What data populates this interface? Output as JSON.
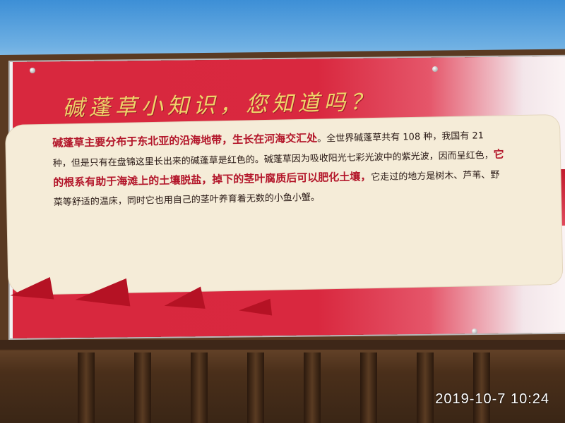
{
  "sign": {
    "title": "碱蓬草小知识，您知道吗？",
    "paragraph_1_lead": "碱蓬草主要分布于东北亚的沿海地带，生长在河海交汇处",
    "paragraph_1_rest": "。全世界碱蓬草共有 108 种，我国有 21 种，但是只有在盘锦这里长出来的碱蓬草是红色的。碱蓬草因为吸收阳光七彩光波中的紫光波，因而呈红色，",
    "paragraph_1_em": "它的根系有助于海滩上的土壤脱盐，掉下的茎叶腐质后可以肥化土壤，",
    "paragraph_1_tail": "它走过的地方是树木、芦苇、野菜等舒适的温床，同时它也用自己的茎叶养育着无数的小鱼小蟹。"
  },
  "camera": {
    "timestamp": "2019-10-7  10:24"
  },
  "colors": {
    "board_red": "#d8283e",
    "title_gold": "#f0d46a",
    "panel_cream": "#f5ecd8",
    "emphasis_red": "#b3162a"
  }
}
